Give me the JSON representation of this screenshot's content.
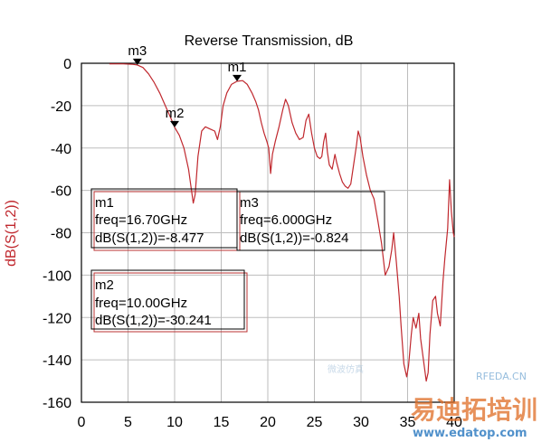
{
  "chart_data": {
    "type": "line",
    "title": "Reverse Transmission, dB",
    "xlabel": "",
    "ylabel": "dB(S(1,2))",
    "xlim": [
      0,
      40
    ],
    "ylim": [
      -160,
      0
    ],
    "x_ticks": [
      0,
      5,
      10,
      15,
      20,
      25,
      30,
      35,
      40
    ],
    "y_ticks": [
      0,
      -20,
      -40,
      -60,
      -80,
      -100,
      -120,
      -140,
      -160
    ],
    "grid": true,
    "series": [
      {
        "name": "",
        "color": "#c0282e",
        "points": [
          [
            3.0,
            -0.3
          ],
          [
            4.5,
            -0.3
          ],
          [
            5.5,
            -0.5
          ],
          [
            6.0,
            -0.82
          ],
          [
            6.6,
            -2
          ],
          [
            7.2,
            -5
          ],
          [
            7.8,
            -9
          ],
          [
            8.4,
            -14
          ],
          [
            9.0,
            -20
          ],
          [
            9.6,
            -26
          ],
          [
            10.0,
            -30.2
          ],
          [
            10.5,
            -34
          ],
          [
            11.0,
            -40
          ],
          [
            11.5,
            -50
          ],
          [
            12.0,
            -66
          ],
          [
            12.2,
            -62
          ],
          [
            12.5,
            -44
          ],
          [
            12.9,
            -32
          ],
          [
            13.3,
            -30
          ],
          [
            13.8,
            -31
          ],
          [
            14.3,
            -32
          ],
          [
            14.6,
            -36
          ],
          [
            14.9,
            -30
          ],
          [
            15.2,
            -20
          ],
          [
            15.6,
            -14
          ],
          [
            16.1,
            -10
          ],
          [
            16.7,
            -8.48
          ],
          [
            17.3,
            -8.2
          ],
          [
            17.8,
            -10
          ],
          [
            18.3,
            -14
          ],
          [
            18.7,
            -18
          ],
          [
            19.0,
            -22
          ],
          [
            19.3,
            -28
          ],
          [
            19.6,
            -33
          ],
          [
            19.9,
            -37
          ],
          [
            20.1,
            -40
          ],
          [
            20.3,
            -52
          ],
          [
            20.5,
            -43
          ],
          [
            20.8,
            -37
          ],
          [
            21.2,
            -30
          ],
          [
            21.6,
            -22
          ],
          [
            21.9,
            -17
          ],
          [
            22.2,
            -20
          ],
          [
            22.6,
            -28
          ],
          [
            23.0,
            -33
          ],
          [
            23.4,
            -36
          ],
          [
            23.8,
            -35
          ],
          [
            24.1,
            -27
          ],
          [
            24.4,
            -24
          ],
          [
            24.7,
            -33
          ],
          [
            25.0,
            -40
          ],
          [
            25.3,
            -44
          ],
          [
            25.6,
            -45
          ],
          [
            25.8,
            -44
          ],
          [
            26.0,
            -37
          ],
          [
            26.2,
            -33
          ],
          [
            26.4,
            -42
          ],
          [
            26.6,
            -48
          ],
          [
            26.9,
            -50
          ],
          [
            27.2,
            -43
          ],
          [
            27.4,
            -47
          ],
          [
            27.7,
            -52
          ],
          [
            28.0,
            -56
          ],
          [
            28.3,
            -58
          ],
          [
            28.6,
            -59
          ],
          [
            28.9,
            -57
          ],
          [
            29.2,
            -48
          ],
          [
            29.5,
            -39
          ],
          [
            29.7,
            -32
          ],
          [
            29.9,
            -35
          ],
          [
            30.2,
            -44
          ],
          [
            30.6,
            -53
          ],
          [
            31.0,
            -60
          ],
          [
            31.4,
            -64
          ],
          [
            31.8,
            -74
          ],
          [
            32.2,
            -85
          ],
          [
            32.6,
            -100
          ],
          [
            33.0,
            -96
          ],
          [
            33.3,
            -88
          ],
          [
            33.5,
            -80
          ],
          [
            33.8,
            -94
          ],
          [
            34.1,
            -110
          ],
          [
            34.3,
            -124
          ],
          [
            34.6,
            -142
          ],
          [
            34.9,
            -148
          ],
          [
            35.1,
            -143
          ],
          [
            35.4,
            -128
          ],
          [
            35.6,
            -120
          ],
          [
            35.9,
            -125
          ],
          [
            36.2,
            -118
          ],
          [
            36.4,
            -130
          ],
          [
            36.7,
            -140
          ],
          [
            37.0,
            -150
          ],
          [
            37.2,
            -146
          ],
          [
            37.4,
            -128
          ],
          [
            37.7,
            -112
          ],
          [
            38.0,
            -110
          ],
          [
            38.2,
            -118
          ],
          [
            38.5,
            -124
          ],
          [
            38.8,
            -103
          ],
          [
            39.0,
            -92
          ],
          [
            39.3,
            -78
          ],
          [
            39.5,
            -55
          ],
          [
            39.7,
            -70
          ],
          [
            39.9,
            -80
          ],
          [
            40.0,
            -82
          ]
        ]
      }
    ],
    "markers": [
      {
        "name": "m1",
        "x": 16.7,
        "y": -8.477
      },
      {
        "name": "m2",
        "x": 10.0,
        "y": -30.241
      },
      {
        "name": "m3",
        "x": 6.0,
        "y": -0.824
      }
    ]
  },
  "marker_boxes": [
    {
      "lines": [
        "m1",
        "freq=16.70GHz",
        "dB(S(1,2))=-8.477"
      ]
    },
    {
      "lines": [
        "m3",
        "freq=6.000GHz",
        "dB(S(1,2))=-0.824"
      ]
    },
    {
      "lines": [
        "m2",
        "freq=10.00GHz",
        "dB(S(1,2))=-30.241"
      ]
    }
  ],
  "watermark": {
    "site1": "RFEDA.CN",
    "brand": "易迪拓培训",
    "site2": "www.edatop.com",
    "faint": "微波仿真"
  }
}
